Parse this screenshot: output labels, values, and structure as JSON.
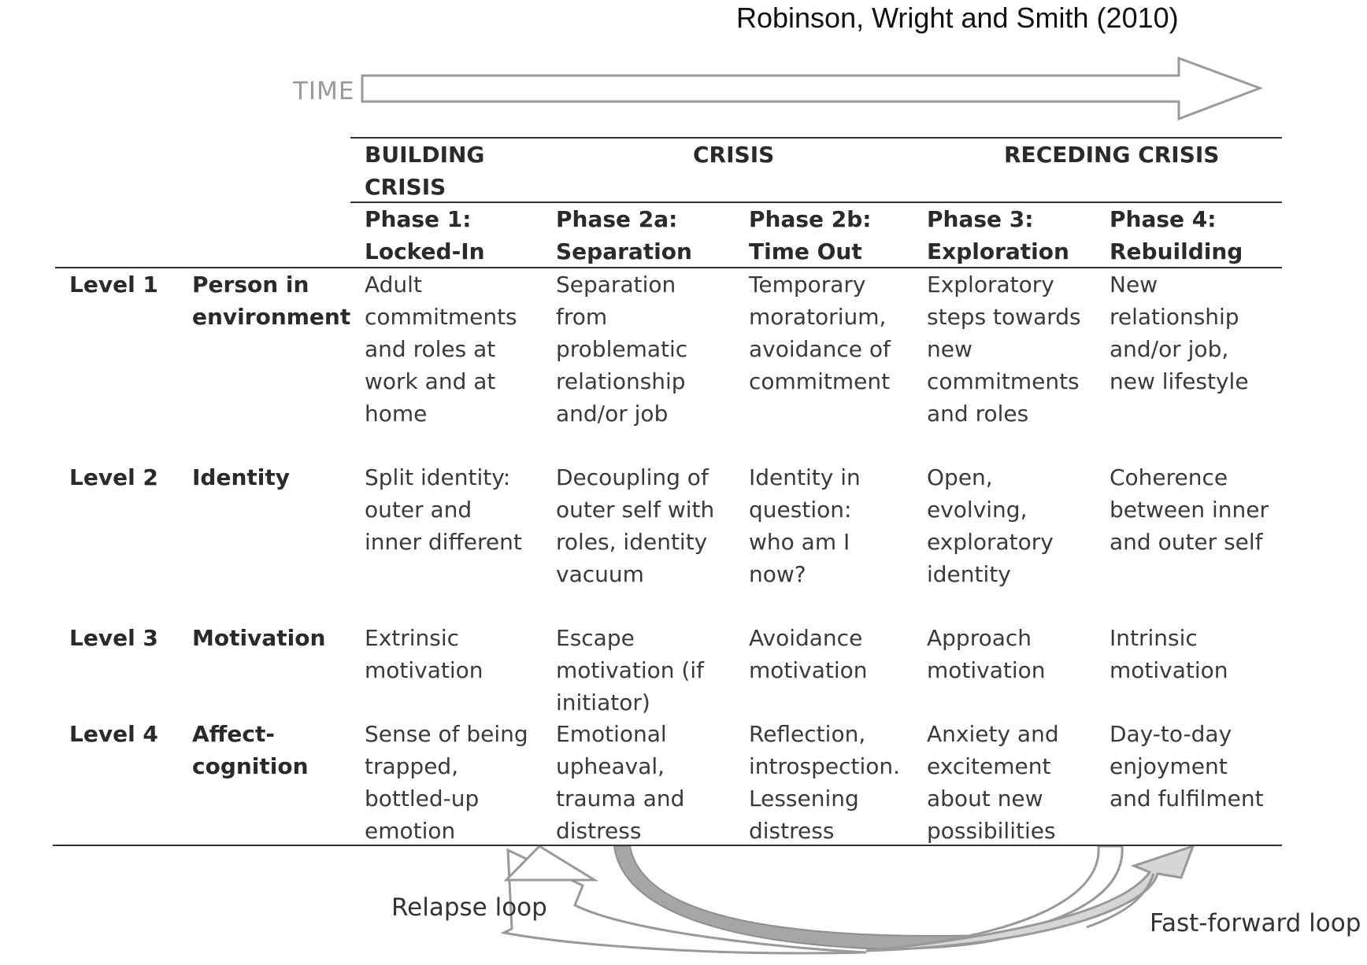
{
  "citation": "Robinson, Wright and Smith (2010)",
  "time_label": "TIME",
  "stages": [
    "BUILDING CRISIS",
    "CRISIS",
    "RECEDING CRISIS"
  ],
  "phases": [
    {
      "title": "Phase 1:",
      "name": "Locked-In"
    },
    {
      "title": "Phase 2a:",
      "name": "Separation"
    },
    {
      "title": "Phase 2b:",
      "name": "Time Out"
    },
    {
      "title": "Phase 3:",
      "name": "Exploration"
    },
    {
      "title": "Phase 4:",
      "name": "Rebuilding"
    }
  ],
  "levels": [
    {
      "level": "Level 1",
      "name": "Person in environment",
      "cells": [
        "Adult commitments and roles at work and at home",
        "Separation from problematic relationship and/or job",
        "Temporary moratorium, avoidance of commitment",
        "Exploratory steps towards new commitments and roles",
        "New relationship and/or job, new lifestyle"
      ]
    },
    {
      "level": "Level 2",
      "name": "Identity",
      "cells": [
        "Split identity: outer and inner different",
        "Decoupling of outer self with roles, identity vacuum",
        "Identity in question: who am I now?",
        "Open, evolving, exploratory identity",
        "Coherence between inner and outer self"
      ]
    },
    {
      "level": "Level 3",
      "name": "Motivation",
      "cells": [
        "Extrinsic motivation",
        "Escape motivation (if initiator)",
        "Avoidance motivation",
        "Approach motivation",
        "Intrinsic motivation"
      ]
    },
    {
      "level": "Level 4",
      "name": "Affect-cognition",
      "cells": [
        "Sense of being trapped, bottled-up emotion",
        "Emotional upheaval, trauma and distress",
        "Reflection, introspection. Lessening distress",
        "Anxiety and excitement about new possibilities",
        "Day-to-day enjoyment and fulfilment"
      ]
    }
  ],
  "loops": {
    "relapse": "Relapse loop",
    "fast_forward": "Fast-forward loop"
  },
  "colors": {
    "time_arrow": "#9a9a9a",
    "relapse_fill": "#a6a6a6",
    "fast_forward_fill": "#d6d6d6",
    "rule": "#333333"
  }
}
